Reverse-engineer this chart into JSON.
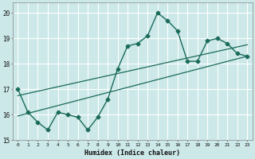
{
  "title": "",
  "xlabel": "Humidex (Indice chaleur)",
  "xlim": [
    -0.5,
    23.5
  ],
  "ylim": [
    15,
    20.4
  ],
  "yticks": [
    15,
    16,
    17,
    18,
    19,
    20
  ],
  "xticks": [
    0,
    1,
    2,
    3,
    4,
    5,
    6,
    7,
    8,
    9,
    10,
    11,
    12,
    13,
    14,
    15,
    16,
    17,
    18,
    19,
    20,
    21,
    22,
    23
  ],
  "bg_color": "#cce8e8",
  "line_color": "#1a6b5a",
  "grid_color": "#ffffff",
  "x_data": [
    0,
    1,
    2,
    3,
    4,
    5,
    6,
    7,
    8,
    9,
    10,
    11,
    12,
    13,
    14,
    15,
    16,
    17,
    18,
    19,
    20,
    21,
    22,
    23
  ],
  "y_main": [
    17.0,
    16.1,
    15.7,
    15.4,
    16.1,
    16.0,
    15.9,
    15.4,
    15.9,
    16.6,
    17.8,
    18.7,
    18.8,
    19.1,
    20.0,
    19.7,
    19.3,
    18.1,
    18.1,
    18.9,
    19.0,
    18.8,
    18.4,
    18.3
  ],
  "trend1_x": [
    0,
    23
  ],
  "trend1_y": [
    15.95,
    18.3
  ],
  "trend2_x": [
    0,
    23
  ],
  "trend2_y": [
    16.75,
    18.75
  ]
}
